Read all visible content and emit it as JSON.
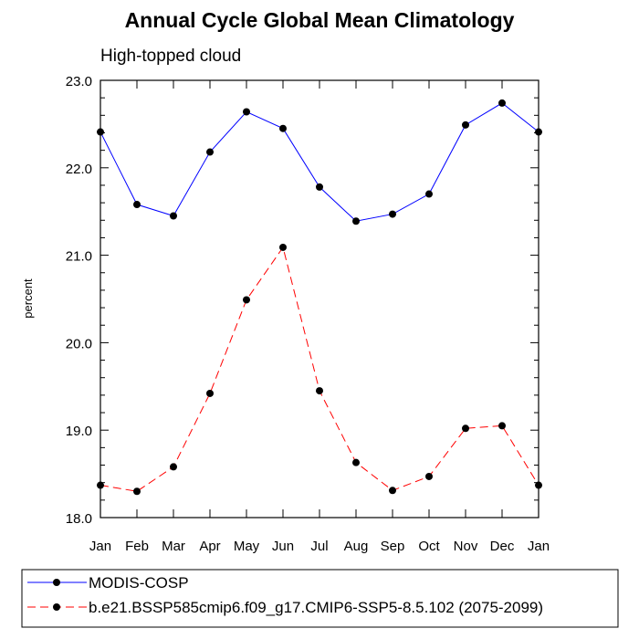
{
  "chart_data": {
    "type": "line",
    "title": "Annual Cycle Global Mean Climatology",
    "subtitle": "High-topped cloud",
    "xlabel": "",
    "ylabel": "percent",
    "categories": [
      "Jan",
      "Feb",
      "Mar",
      "Apr",
      "May",
      "Jun",
      "Jul",
      "Aug",
      "Sep",
      "Oct",
      "Nov",
      "Dec",
      "Jan"
    ],
    "ylim": [
      18.0,
      23.0
    ],
    "yticks": [
      "18.0",
      "19.0",
      "20.0",
      "21.0",
      "22.0",
      "23.0"
    ],
    "grid": false,
    "legend_position": "bottom",
    "series": [
      {
        "name": "MODIS-COSP",
        "color": "#0000ff",
        "line_style": "solid",
        "marker": "filled-circle",
        "values": [
          22.41,
          21.58,
          21.45,
          22.18,
          22.64,
          22.45,
          21.78,
          21.39,
          21.47,
          21.7,
          22.49,
          22.74,
          22.41
        ]
      },
      {
        "name": "b.e21.BSSP585cmip6.f09_g17.CMIP6-SSP5-8.5.102 (2075-2099)",
        "color": "#ff0000",
        "line_style": "dashed",
        "marker": "filled-circle",
        "values": [
          18.37,
          18.3,
          18.58,
          19.42,
          20.49,
          21.09,
          19.45,
          18.63,
          18.31,
          18.47,
          19.02,
          19.05,
          18.37
        ]
      }
    ]
  }
}
